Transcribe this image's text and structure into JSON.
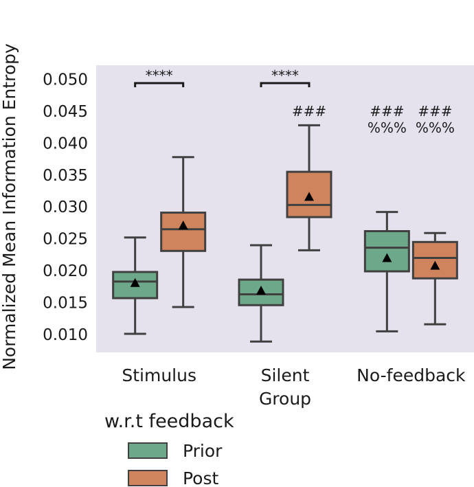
{
  "chart_data": {
    "type": "box",
    "title": "",
    "xlabel": "",
    "ylabel": "Normalized Mean Information Entropy",
    "ylim": [
      0.0072,
      0.0522
    ],
    "yticks": [
      0.01,
      0.015,
      0.02,
      0.025,
      0.03,
      0.035,
      0.04,
      0.045,
      0.05
    ],
    "ytick_labels": [
      "0.010",
      "0.015",
      "0.020",
      "0.025",
      "0.030",
      "0.035",
      "0.040",
      "0.045",
      "0.050"
    ],
    "categories": [
      {
        "lines": [
          "Stimulus"
        ]
      },
      {
        "lines": [
          "Silent",
          "Group"
        ]
      },
      {
        "lines": [
          "No-feedback"
        ]
      }
    ],
    "legend": {
      "title": "w.r.t feedback",
      "position": "bottom-left",
      "entries": [
        "Prior",
        "Post"
      ]
    },
    "grid": false,
    "background_color": "#e5e2ee",
    "series": [
      {
        "name": "Prior",
        "color": "#6ea88a",
        "boxes": [
          {
            "whisker_low": 0.0101,
            "q1": 0.0157,
            "median": 0.0183,
            "q3": 0.0198,
            "whisker_high": 0.0252,
            "mean": 0.0181
          },
          {
            "whisker_low": 0.0089,
            "q1": 0.0146,
            "median": 0.0163,
            "q3": 0.0186,
            "whisker_high": 0.024,
            "mean": 0.0169
          },
          {
            "whisker_low": 0.0105,
            "q1": 0.0199,
            "median": 0.0236,
            "q3": 0.0262,
            "whisker_high": 0.0292,
            "mean": 0.022
          }
        ]
      },
      {
        "name": "Post",
        "color": "#cf845d",
        "boxes": [
          {
            "whisker_low": 0.0143,
            "q1": 0.0231,
            "median": 0.0265,
            "q3": 0.0291,
            "whisker_high": 0.0378,
            "mean": 0.0271
          },
          {
            "whisker_low": 0.0232,
            "q1": 0.0284,
            "median": 0.0303,
            "q3": 0.0355,
            "whisker_high": 0.0428,
            "mean": 0.0316
          },
          {
            "whisker_low": 0.0116,
            "q1": 0.0188,
            "median": 0.022,
            "q3": 0.0245,
            "whisker_high": 0.0259,
            "mean": 0.0208
          }
        ]
      }
    ],
    "annotations": [
      {
        "type": "bracket",
        "category": 0,
        "text": "****",
        "y": 0.0494
      },
      {
        "type": "bracket",
        "category": 1,
        "text": "****",
        "y": 0.0494
      },
      {
        "type": "text",
        "category": 1,
        "series": 1,
        "lines": [
          "###"
        ],
        "y": 0.0455
      },
      {
        "type": "text",
        "category": 2,
        "series": 0,
        "lines": [
          "###",
          "%%%"
        ],
        "y": 0.0455
      },
      {
        "type": "text",
        "category": 2,
        "series": 1,
        "lines": [
          "###",
          "%%%"
        ],
        "y": 0.0455
      }
    ]
  }
}
